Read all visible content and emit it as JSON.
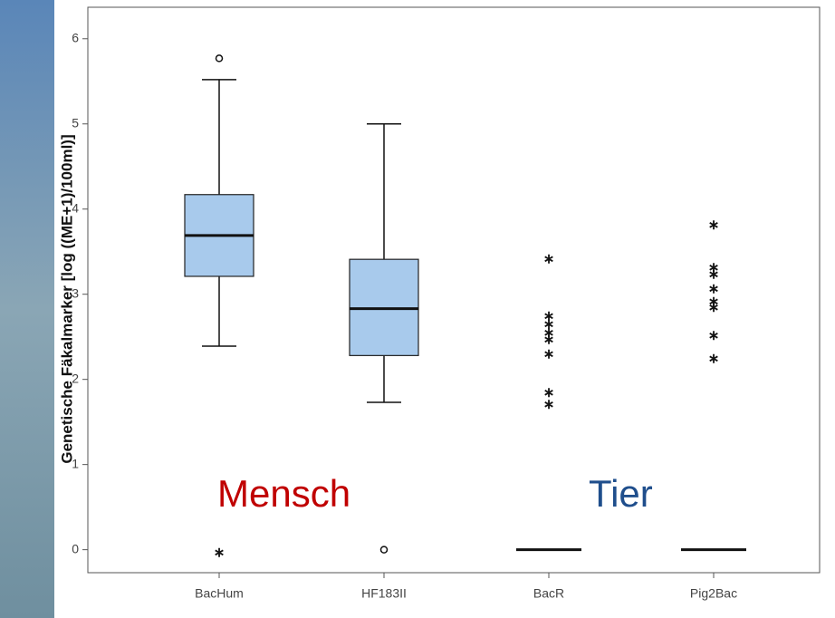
{
  "chart_data": {
    "type": "box",
    "y_label": "Genetische Fäkalmarker [log ((ME+1)/100ml)]",
    "categories": [
      "BacHum",
      "HF183II",
      "BacR",
      "Pig2Bac"
    ],
    "color": "#a8caec",
    "boxes": [
      {
        "min": 2.39,
        "q1": 3.21,
        "median": 3.69,
        "q3": 4.17,
        "max": 5.52,
        "outliers": [
          5.77
        ],
        "extremes": [
          0
        ]
      },
      {
        "min": 1.73,
        "q1": 2.28,
        "median": 2.83,
        "q3": 3.41,
        "max": 5.0,
        "outliers": [
          0
        ],
        "extremes": []
      },
      {
        "min": 0,
        "q1": 0,
        "median": 0,
        "q3": 0,
        "max": 0,
        "outliers": [],
        "extremes": [
          3.45,
          2.78,
          2.68,
          2.58,
          2.5,
          2.33,
          1.88,
          1.74
        ]
      },
      {
        "min": 0,
        "q1": 0,
        "median": 0,
        "q3": 0,
        "max": 0,
        "outliers": [],
        "extremes": [
          3.85,
          3.35,
          3.27,
          3.1,
          2.95,
          2.88,
          2.55,
          2.28
        ]
      }
    ],
    "ylim": [
      -0.27,
      6.37
    ],
    "yticks": [
      0,
      1,
      2,
      3,
      4,
      5,
      6
    ],
    "annotations": [
      {
        "text": "Mensch",
        "color": "#c00000"
      },
      {
        "text": "Tier",
        "color": "#1f4e8c"
      }
    ]
  }
}
